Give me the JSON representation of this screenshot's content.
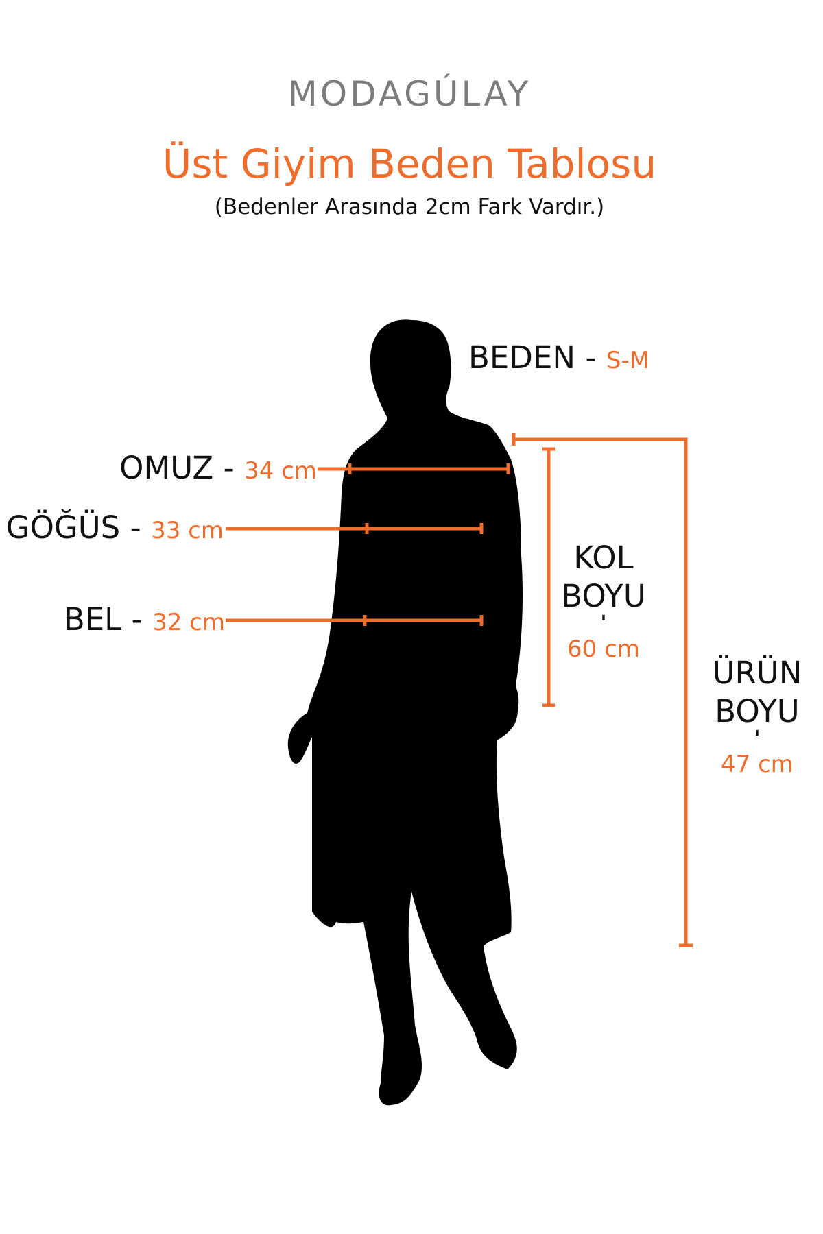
{
  "brand": {
    "logo": "MODAGÚLAY"
  },
  "header": {
    "title": "Üst Giyim Beden Tablosu",
    "subtitle": "(Bedenler Arasında 2cm Fark Vardır.)"
  },
  "size": {
    "label": "BEDEN -",
    "value": "S-M"
  },
  "measurements": {
    "shoulder": {
      "label": "OMUZ -",
      "value": "34 cm"
    },
    "chest": {
      "label": "GÖĞÜS -",
      "value": "33 cm"
    },
    "waist": {
      "label": "BEL -",
      "value": "32 cm"
    },
    "sleeve": {
      "label_line1": "KOL",
      "label_line2": "BOYU",
      "separator": "'",
      "value": "60 cm"
    },
    "length": {
      "label_line1": "ÜRÜN",
      "label_line2": "BOYU",
      "separator": "'",
      "value": "47 cm"
    }
  },
  "colors": {
    "accent": "#ee6d2c",
    "logo": "#7b7b7b",
    "silhouette": "#000000"
  }
}
